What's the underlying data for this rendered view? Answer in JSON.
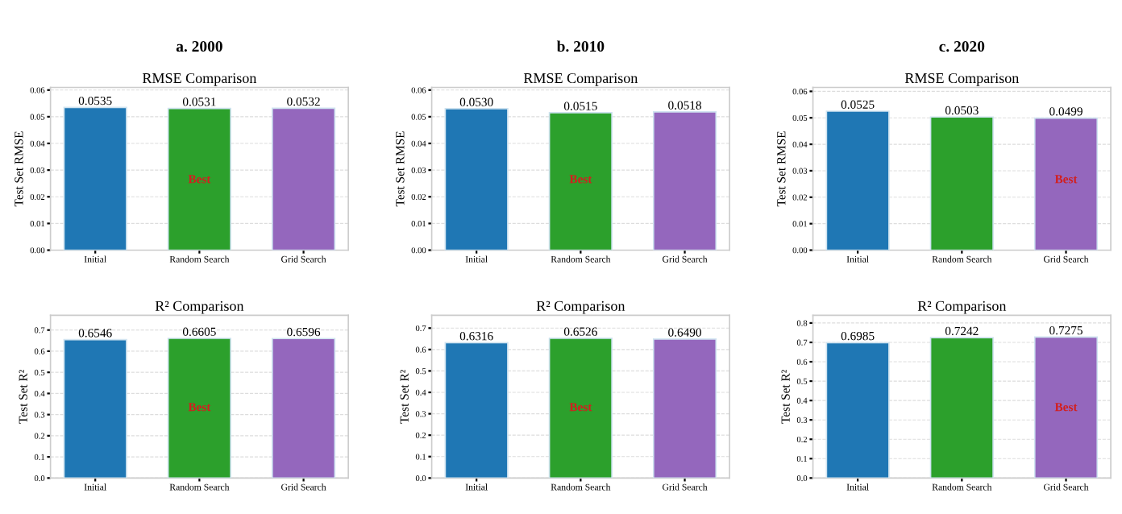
{
  "chart_data": [
    {
      "type": "bar",
      "title": "a. 2000",
      "subtitle": "RMSE Comparison",
      "ylabel": "Test Set RMSE",
      "categories": [
        "Initial",
        "Random Search",
        "Grid Search"
      ],
      "values": [
        0.0535,
        0.0531,
        0.0532
      ],
      "value_labels": [
        "0.0535",
        "0.0531",
        "0.0532"
      ],
      "colors": [
        "#1f77b4",
        "#2ca02c",
        "#9467bd"
      ],
      "ylim": [
        0,
        0.061
      ],
      "yticks": [
        {
          "value": 0,
          "label": "0.00"
        },
        {
          "value": 0.01,
          "label": "0.01"
        },
        {
          "value": 0.02,
          "label": "0.02"
        },
        {
          "value": 0.03,
          "label": "0.03"
        },
        {
          "value": 0.04,
          "label": "0.04"
        },
        {
          "value": 0.05,
          "label": "0.05"
        },
        {
          "value": 0.06,
          "label": "0.06"
        }
      ],
      "grid": "y",
      "annotations": [
        "Best"
      ]
    },
    {
      "type": "bar",
      "title": "b. 2010",
      "subtitle": "RMSE Comparison",
      "ylabel": "Test Set RMSE",
      "categories": [
        "Initial",
        "Random Search",
        "Grid Search"
      ],
      "values": [
        0.053,
        0.0515,
        0.0518
      ],
      "value_labels": [
        "0.0530",
        "0.0515",
        "0.0518"
      ],
      "colors": [
        "#1f77b4",
        "#2ca02c",
        "#9467bd"
      ],
      "ylim": [
        0,
        0.061
      ],
      "yticks": [
        {
          "value": 0,
          "label": "0.00"
        },
        {
          "value": 0.01,
          "label": "0.01"
        },
        {
          "value": 0.02,
          "label": "0.02"
        },
        {
          "value": 0.03,
          "label": "0.03"
        },
        {
          "value": 0.04,
          "label": "0.04"
        },
        {
          "value": 0.05,
          "label": "0.05"
        },
        {
          "value": 0.06,
          "label": "0.06"
        }
      ],
      "grid": "y",
      "annotations": [
        "Best"
      ]
    },
    {
      "type": "bar",
      "title": "c. 2020",
      "subtitle": "RMSE Comparison",
      "ylabel": "Test Set RMSE",
      "categories": [
        "Initial",
        "Random Search",
        "Grid Search"
      ],
      "values": [
        0.0525,
        0.0503,
        0.0499
      ],
      "value_labels": [
        "0.0525",
        "0.0503",
        "0.0499"
      ],
      "colors": [
        "#1f77b4",
        "#2ca02c",
        "#9467bd"
      ],
      "ylim": [
        0,
        0.0615
      ],
      "yticks": [
        {
          "value": 0,
          "label": "0.00"
        },
        {
          "value": 0.01,
          "label": "0.01"
        },
        {
          "value": 0.02,
          "label": "0.02"
        },
        {
          "value": 0.03,
          "label": "0.03"
        },
        {
          "value": 0.04,
          "label": "0.04"
        },
        {
          "value": 0.05,
          "label": "0.05"
        },
        {
          "value": 0.06,
          "label": "0.06"
        }
      ],
      "grid": "y",
      "annotations": [
        "Best"
      ]
    },
    {
      "type": "bar",
      "subtitle": "R² Comparison",
      "ylabel": "Test Set R²",
      "categories": [
        "Initial",
        "Random Search",
        "Grid Search"
      ],
      "values": [
        0.6546,
        0.6605,
        0.6596
      ],
      "value_labels": [
        "0.6546",
        "0.6605",
        "0.6596"
      ],
      "colors": [
        "#1f77b4",
        "#2ca02c",
        "#9467bd"
      ],
      "ylim": [
        0,
        0.77
      ],
      "yticks": [
        {
          "value": 0,
          "label": "0.0"
        },
        {
          "value": 0.1,
          "label": "0.1"
        },
        {
          "value": 0.2,
          "label": "0.2"
        },
        {
          "value": 0.3,
          "label": "0.3"
        },
        {
          "value": 0.4,
          "label": "0.4"
        },
        {
          "value": 0.5,
          "label": "0.5"
        },
        {
          "value": 0.6,
          "label": "0.6"
        },
        {
          "value": 0.7,
          "label": "0.7"
        }
      ],
      "grid": "y",
      "annotations": [
        "Best"
      ]
    },
    {
      "type": "bar",
      "subtitle": "R² Comparison",
      "ylabel": "Test Set R²",
      "categories": [
        "Initial",
        "Random Search",
        "Grid Search"
      ],
      "values": [
        0.6316,
        0.6526,
        0.649
      ],
      "value_labels": [
        "0.6316",
        "0.6526",
        "0.6490"
      ],
      "colors": [
        "#1f77b4",
        "#2ca02c",
        "#9467bd"
      ],
      "ylim": [
        0,
        0.76
      ],
      "yticks": [
        {
          "value": 0,
          "label": "0.0"
        },
        {
          "value": 0.1,
          "label": "0.1"
        },
        {
          "value": 0.2,
          "label": "0.2"
        },
        {
          "value": 0.3,
          "label": "0.3"
        },
        {
          "value": 0.4,
          "label": "0.4"
        },
        {
          "value": 0.5,
          "label": "0.5"
        },
        {
          "value": 0.6,
          "label": "0.6"
        },
        {
          "value": 0.7,
          "label": "0.7"
        }
      ],
      "grid": "y",
      "annotations": [
        "Best"
      ]
    },
    {
      "type": "bar",
      "subtitle": "R² Comparison",
      "ylabel": "Test Set R²",
      "categories": [
        "Initial",
        "Random Search",
        "Grid Search"
      ],
      "values": [
        0.6985,
        0.7242,
        0.7275
      ],
      "value_labels": [
        "0.6985",
        "0.7242",
        "0.7275"
      ],
      "colors": [
        "#1f77b4",
        "#2ca02c",
        "#9467bd"
      ],
      "ylim": [
        0,
        0.84
      ],
      "yticks": [
        {
          "value": 0,
          "label": "0.0"
        },
        {
          "value": 0.1,
          "label": "0.1"
        },
        {
          "value": 0.2,
          "label": "0.2"
        },
        {
          "value": 0.3,
          "label": "0.3"
        },
        {
          "value": 0.4,
          "label": "0.4"
        },
        {
          "value": 0.5,
          "label": "0.5"
        },
        {
          "value": 0.6,
          "label": "0.6"
        },
        {
          "value": 0.7,
          "label": "0.7"
        },
        {
          "value": 0.8,
          "label": "0.8"
        }
      ],
      "grid": "y",
      "annotations": [
        "Best"
      ]
    }
  ]
}
